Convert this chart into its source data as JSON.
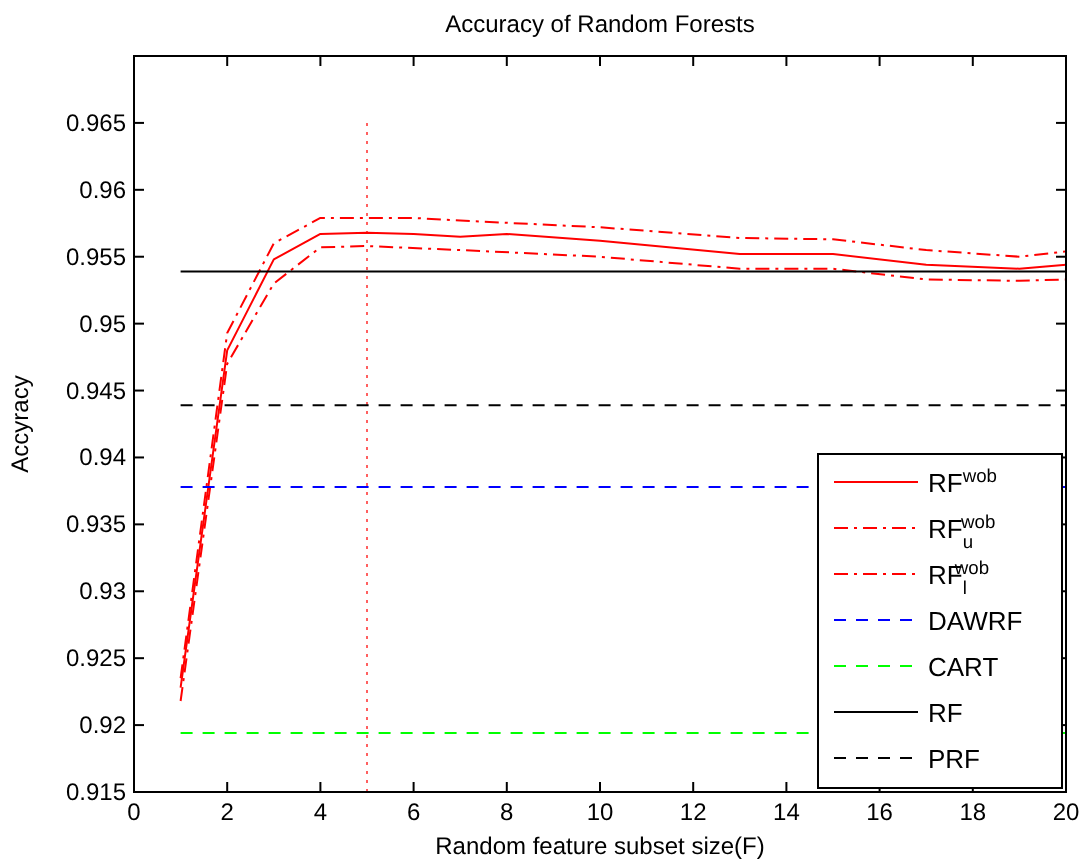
{
  "chart_data": {
    "type": "line",
    "title": "Accuracy of Random Forests",
    "xlabel": "Random feature subset size(F)",
    "ylabel": "Accyracy",
    "xlim": [
      0,
      20
    ],
    "xticks": [
      0,
      2,
      4,
      6,
      8,
      10,
      12,
      14,
      16,
      18,
      20
    ],
    "ylim": [
      0.915,
      0.97
    ],
    "yticks": [
      0.915,
      0.92,
      0.925,
      0.93,
      0.935,
      0.94,
      0.945,
      0.95,
      0.955,
      0.96,
      0.965
    ],
    "grid": false,
    "legend": "bottom right",
    "marker": "none",
    "series": [
      {
        "name": "RF$^{wob}$",
        "color": "#ff0000",
        "line_style": "solid",
        "x": [
          1,
          2,
          3,
          4,
          5,
          6,
          7,
          8,
          10,
          13,
          15,
          17,
          19,
          20
        ],
        "values": [
          0.9228,
          0.948,
          0.9548,
          0.9567,
          0.9568,
          0.9567,
          0.9565,
          0.9567,
          0.9562,
          0.9552,
          0.9552,
          0.9544,
          0.9541,
          0.9544
        ]
      },
      {
        "name": "RF$_{u}$$^{wob}$",
        "color": "#ff0000",
        "line_style": "dashdot",
        "x": [
          1,
          2,
          3,
          4,
          5,
          6,
          7,
          10,
          13,
          15,
          17,
          19,
          20
        ],
        "values": [
          0.9235,
          0.9493,
          0.956,
          0.9579,
          0.9579,
          0.9579,
          0.9577,
          0.9572,
          0.9564,
          0.9563,
          0.9555,
          0.955,
          0.9554
        ]
      },
      {
        "name": "RF$_{l}$$^{wob}$",
        "color": "#ff0000",
        "line_style": "dashdot",
        "x": [
          1,
          2,
          3,
          4,
          5,
          7,
          10,
          13,
          15,
          17,
          19,
          20
        ],
        "values": [
          0.9218,
          0.947,
          0.953,
          0.9557,
          0.9558,
          0.9555,
          0.955,
          0.9541,
          0.9541,
          0.9533,
          0.9532,
          0.9533
        ]
      },
      {
        "name": "DAWRF",
        "color": "#0000ff",
        "line_style": "dashed",
        "x": [
          1,
          20
        ],
        "values": [
          0.9378,
          0.9378
        ]
      },
      {
        "name": "CART",
        "color": "#00ff00",
        "line_style": "dashed",
        "x": [
          1,
          20
        ],
        "values": [
          0.9194,
          0.9194
        ]
      },
      {
        "name": "RF",
        "color": "#000000",
        "line_style": "solid",
        "x": [
          1,
          20
        ],
        "values": [
          0.9539,
          0.9539
        ]
      },
      {
        "name": "PRF",
        "color": "#000000",
        "line_style": "dashed",
        "x": [
          1,
          20
        ],
        "values": [
          0.9439,
          0.9439
        ]
      }
    ],
    "ref_lines": [
      {
        "axis": "x",
        "value": 5,
        "color": "#ff6060",
        "line_style": "dotted"
      }
    ]
  }
}
